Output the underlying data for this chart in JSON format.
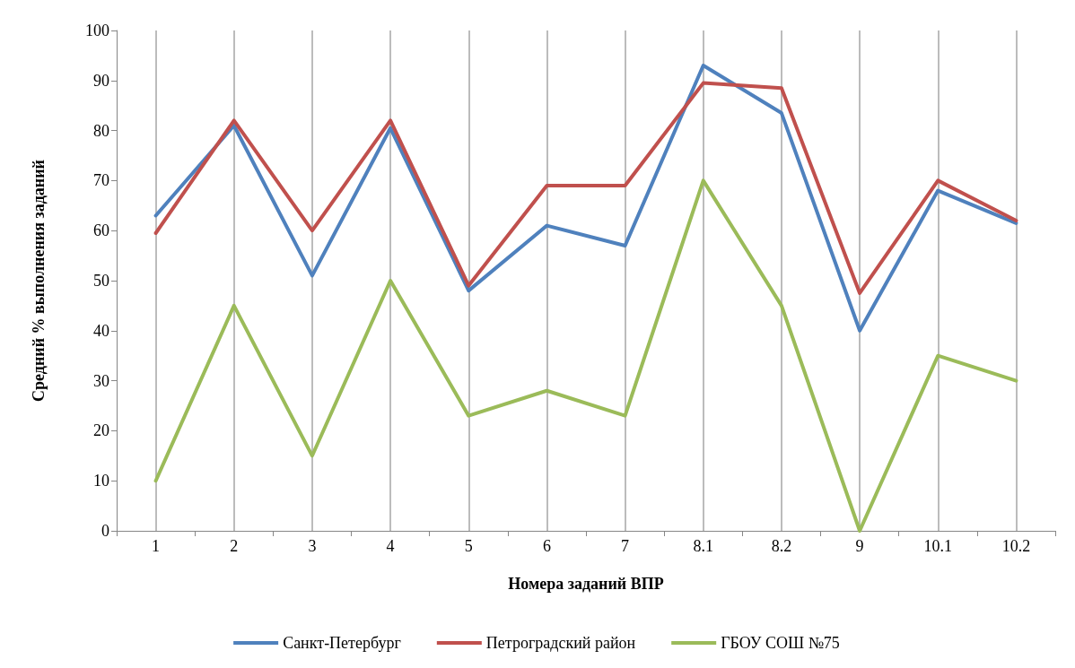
{
  "chart_data": {
    "type": "line",
    "xlabel": "Номера заданий ВПР",
    "ylabel": "Средний % выполнения заданий",
    "categories": [
      "1",
      "2",
      "3",
      "4",
      "5",
      "6",
      "7",
      "8.1",
      "8.2",
      "9",
      "10.1",
      "10.2"
    ],
    "series": [
      {
        "name": "Санкт-Петербург",
        "color": "#4f81bd",
        "values": [
          63,
          81,
          51,
          80.5,
          48,
          61,
          57,
          93,
          83.5,
          40,
          68,
          61.5
        ]
      },
      {
        "name": "Петроградский район",
        "color": "#c0504d",
        "values": [
          59.5,
          82,
          60,
          82,
          49,
          69,
          69,
          89.5,
          88.5,
          47.5,
          70,
          62
        ]
      },
      {
        "name": "ГБОУ СОШ №75",
        "color": "#9bbb59",
        "values": [
          10,
          45,
          15,
          50,
          23,
          28,
          23,
          70,
          45,
          0,
          35,
          30
        ]
      }
    ],
    "ylim": [
      0,
      100
    ],
    "yticks": [
      0,
      10,
      20,
      30,
      40,
      50,
      60,
      70,
      80,
      90,
      100
    ],
    "grid": "x",
    "legend": "bottom",
    "marker": "none",
    "line_style": "solid"
  }
}
